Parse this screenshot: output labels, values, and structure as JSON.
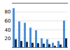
{
  "chart_data": {
    "type": "bar",
    "categories": [
      null,
      null,
      null,
      null,
      null,
      null,
      null,
      null,
      null,
      null
    ],
    "series": [
      {
        "color": "#4a90d9",
        "values": [
          88,
          58,
          55,
          44,
          38,
          20,
          18,
          10,
          14,
          60
        ]
      },
      {
        "color": "#1c2f4a",
        "values": [
          18,
          14,
          12,
          10,
          9,
          8,
          7,
          3,
          6,
          20
        ]
      }
    ],
    "ylim": [
      0,
      100
    ],
    "yticks": [
      20,
      40,
      60,
      80
    ],
    "grid": true,
    "tick_labels": "y"
  }
}
